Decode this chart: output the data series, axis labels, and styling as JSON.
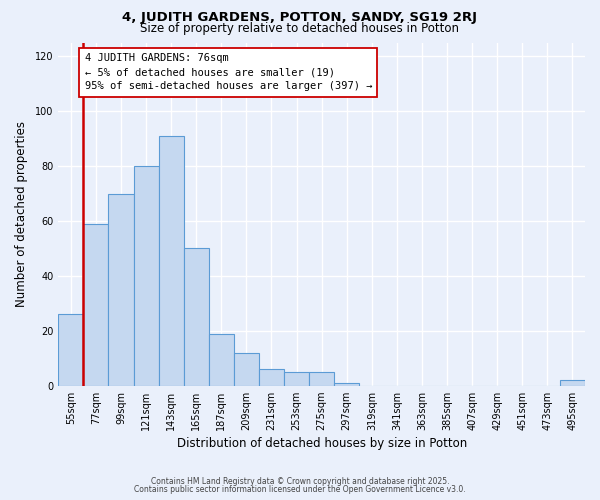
{
  "title1": "4, JUDITH GARDENS, POTTON, SANDY, SG19 2RJ",
  "title2": "Size of property relative to detached houses in Potton",
  "xlabel": "Distribution of detached houses by size in Potton",
  "ylabel": "Number of detached properties",
  "bar_labels": [
    "55sqm",
    "77sqm",
    "99sqm",
    "121sqm",
    "143sqm",
    "165sqm",
    "187sqm",
    "209sqm",
    "231sqm",
    "253sqm",
    "275sqm",
    "297sqm",
    "319sqm",
    "341sqm",
    "363sqm",
    "385sqm",
    "407sqm",
    "429sqm",
    "451sqm",
    "473sqm",
    "495sqm"
  ],
  "bar_values": [
    26,
    59,
    70,
    80,
    91,
    50,
    19,
    12,
    6,
    5,
    5,
    1,
    0,
    0,
    0,
    0,
    0,
    0,
    0,
    0,
    2
  ],
  "bar_color": "#c5d8f0",
  "bar_edge_color": "#5b9bd5",
  "bg_color": "#eaf0fb",
  "grid_color": "#ffffff",
  "vline_idx": 1,
  "vline_color": "#cc0000",
  "annotation_line1": "4 JUDITH GARDENS: 76sqm",
  "annotation_line2": "← 5% of detached houses are smaller (19)",
  "annotation_line3": "95% of semi-detached houses are larger (397) →",
  "annotation_box_fc": "#ffffff",
  "annotation_box_ec": "#cc0000",
  "ylim": [
    0,
    125
  ],
  "yticks": [
    0,
    20,
    40,
    60,
    80,
    100,
    120
  ],
  "footer1": "Contains HM Land Registry data © Crown copyright and database right 2025.",
  "footer2": "Contains public sector information licensed under the Open Government Licence v3.0."
}
